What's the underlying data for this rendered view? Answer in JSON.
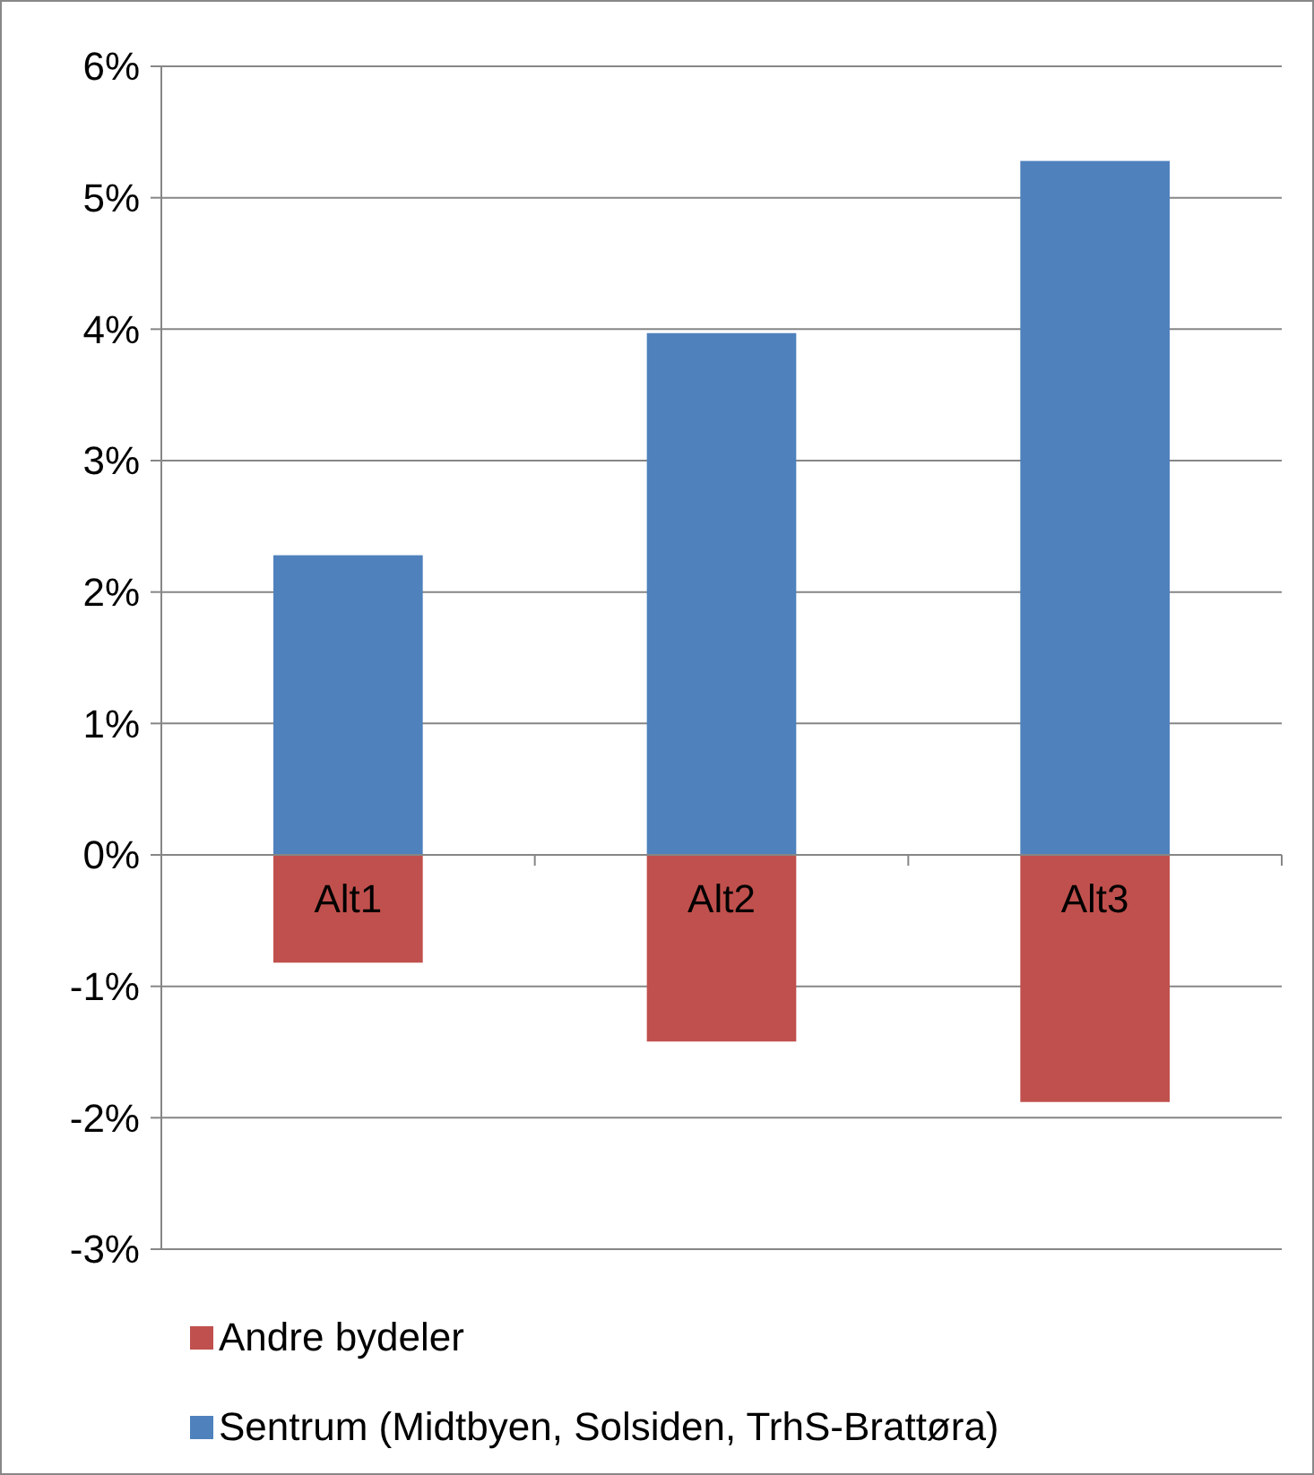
{
  "chart_data": {
    "type": "bar",
    "stacked": true,
    "categories": [
      "Alt1",
      "Alt2",
      "Alt3"
    ],
    "series": [
      {
        "name": "Andre bydeler",
        "color": "#c0504d",
        "values": [
          -0.82,
          -1.42,
          -1.88
        ]
      },
      {
        "name": "Sentrum (Midtbyen, Solsiden, TrhS-Brattøra)",
        "color": "#4f81bd",
        "values": [
          2.28,
          3.97,
          5.28
        ]
      }
    ],
    "ylim": [
      -3,
      6
    ],
    "yticks": [
      {
        "value": -3,
        "label": "-3%"
      },
      {
        "value": -2,
        "label": "-2%"
      },
      {
        "value": -1,
        "label": "-1%"
      },
      {
        "value": 0,
        "label": "0%"
      },
      {
        "value": 1,
        "label": "1%"
      },
      {
        "value": 2,
        "label": "2%"
      },
      {
        "value": 3,
        "label": "3%"
      },
      {
        "value": 4,
        "label": "4%"
      },
      {
        "value": 5,
        "label": "5%"
      },
      {
        "value": 6,
        "label": "6%"
      }
    ],
    "grid": "y",
    "legend": "bottom"
  }
}
